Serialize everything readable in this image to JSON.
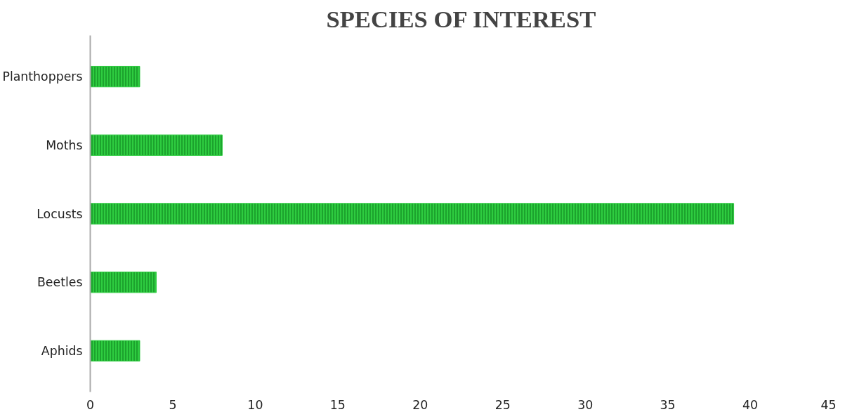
{
  "chart_data": {
    "type": "bar",
    "orientation": "horizontal",
    "title": "SPECIES OF INTEREST",
    "categories": [
      "Planthoppers",
      "Moths",
      "Locusts",
      "Beetles",
      "Aphids"
    ],
    "values": [
      3,
      8,
      39,
      4,
      3
    ],
    "color": "#2ecc40",
    "xlim": [
      0,
      45
    ],
    "xticks": [
      0,
      5,
      10,
      15,
      20,
      25,
      30,
      35,
      40,
      45
    ],
    "grid": false
  }
}
